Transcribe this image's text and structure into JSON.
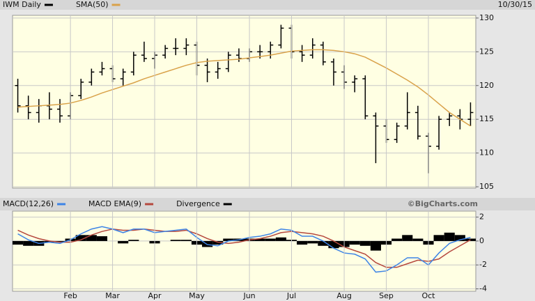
{
  "chart_data": [
    {
      "type": "ohlc",
      "date": "10/30/15",
      "ylim": [
        104.8,
        130.4
      ],
      "yticks": [
        105,
        110,
        115,
        120,
        125,
        130
      ],
      "grid": true,
      "series": [
        {
          "name": "IWM Daily",
          "color": "#000000",
          "open": [
            120,
            117,
            116,
            117,
            116.5,
            115.5,
            118.5,
            120.5,
            122,
            122.5,
            121,
            122,
            124.5,
            124,
            124.5,
            125.5,
            125.5,
            126,
            123,
            122,
            122.5,
            124.5,
            124,
            125,
            125,
            126,
            128.5,
            125,
            124.5,
            126,
            123.5,
            122,
            120.5,
            121,
            115.5,
            114,
            112,
            114,
            116,
            112.5,
            111,
            115,
            115.5,
            115
          ],
          "high": [
            121,
            118.5,
            118,
            119,
            118,
            119,
            121,
            122.5,
            123.5,
            123,
            122.5,
            125,
            126.5,
            125,
            126,
            127,
            127,
            126.5,
            124,
            123.5,
            125,
            125.5,
            125.5,
            126,
            126.5,
            129,
            129,
            126,
            127,
            126.5,
            124,
            123,
            121.5,
            121.5,
            116,
            115,
            114.5,
            119,
            117,
            113,
            115.5,
            116,
            116.5,
            117.5
          ],
          "low": [
            116,
            115,
            114.5,
            115,
            114.5,
            115,
            118,
            120,
            121.5,
            120.5,
            120,
            121.5,
            123.5,
            122.5,
            124,
            124.5,
            124.5,
            121.5,
            120.5,
            121,
            122,
            123.5,
            123.5,
            124,
            124,
            125.5,
            124,
            123.5,
            124,
            123,
            120,
            119.5,
            119,
            115,
            108.5,
            111.5,
            111.5,
            113.5,
            112,
            107,
            110.5,
            114,
            113.5,
            114
          ],
          "close": [
            117,
            116,
            117,
            116.5,
            115.5,
            118.5,
            120.5,
            122,
            122.5,
            121,
            122,
            124.5,
            124,
            124.5,
            125.5,
            125.5,
            126,
            123,
            122,
            122.5,
            124.5,
            124,
            125,
            125,
            126,
            128.5,
            125,
            124.5,
            126,
            123.5,
            122,
            120.5,
            121,
            115.5,
            114,
            112,
            114,
            116,
            112.5,
            111,
            115,
            115.5,
            115,
            116
          ]
        },
        {
          "name": "SMA(50)",
          "color": "#d9a24a",
          "values": [
            116.8,
            116.9,
            117,
            117.1,
            117.2,
            117.4,
            117.8,
            118.3,
            118.9,
            119.4,
            119.9,
            120.4,
            121,
            121.5,
            122,
            122.5,
            123,
            123.4,
            123.6,
            123.7,
            123.8,
            123.9,
            124.1,
            124.3,
            124.5,
            124.8,
            125.1,
            125.2,
            125.3,
            125.3,
            125.2,
            125,
            124.7,
            124.2,
            123.4,
            122.6,
            121.7,
            120.8,
            119.8,
            118.6,
            117.3,
            116,
            115,
            114
          ]
        }
      ]
    },
    {
      "type": "macd",
      "source": "©BigCharts.com",
      "ylim": [
        -4.2,
        2.5
      ],
      "yticks": [
        2,
        0,
        -2,
        -4
      ],
      "grid": true,
      "categories": [
        null,
        null,
        null,
        null,
        null,
        "Feb",
        null,
        null,
        null,
        "Mar",
        null,
        null,
        null,
        "Apr",
        null,
        null,
        null,
        "May",
        null,
        null,
        null,
        null,
        "Jun",
        null,
        null,
        null,
        "Jul",
        null,
        null,
        null,
        null,
        "Aug",
        null,
        null,
        null,
        "Sep",
        null,
        null,
        null,
        "Oct",
        null,
        null,
        null,
        null
      ],
      "series": [
        {
          "name": "MACD(12,26)",
          "color": "#3d84e6",
          "values": [
            0.6,
            0.1,
            -0.2,
            -0.1,
            -0.2,
            0.1,
            0.6,
            1.0,
            1.2,
            1.0,
            0.7,
            1.0,
            1.0,
            0.7,
            0.8,
            0.9,
            1.0,
            0.3,
            -0.3,
            -0.4,
            0,
            0.1,
            0.3,
            0.4,
            0.6,
            1.0,
            0.9,
            0.4,
            0.4,
            0,
            -0.6,
            -1.0,
            -1.1,
            -1.5,
            -2.6,
            -2.5,
            -2.0,
            -1.4,
            -1.4,
            -2.0,
            -1.0,
            -0.2,
            0.1,
            0.3
          ]
        },
        {
          "name": "MACD EMA(9)",
          "color": "#b5483e",
          "values": [
            0.9,
            0.5,
            0.2,
            0,
            -0.1,
            -0.1,
            0.1,
            0.5,
            0.8,
            1.0,
            0.9,
            0.9,
            1.0,
            0.9,
            0.8,
            0.8,
            0.9,
            0.6,
            0.2,
            -0.1,
            -0.2,
            -0.1,
            0.1,
            0.2,
            0.4,
            0.7,
            0.8,
            0.7,
            0.6,
            0.4,
            0,
            -0.5,
            -0.8,
            -1.1,
            -1.8,
            -2.2,
            -2.2,
            -1.9,
            -1.6,
            -1.7,
            -1.5,
            -0.9,
            -0.4,
            0.1
          ]
        },
        {
          "name": "Divergence",
          "color": "#000000",
          "values": [
            -0.3,
            -0.4,
            -0.4,
            -0.1,
            -0.1,
            0.2,
            0.5,
            0.5,
            0.4,
            0,
            -0.2,
            0.1,
            0,
            -0.2,
            0,
            0.1,
            0.1,
            -0.3,
            -0.5,
            -0.3,
            0.2,
            0.2,
            0.2,
            0.2,
            0.2,
            0.3,
            0.1,
            -0.3,
            -0.2,
            -0.4,
            -0.6,
            -0.5,
            -0.3,
            -0.4,
            -0.8,
            -0.3,
            0.2,
            0.5,
            0.2,
            -0.3,
            0.5,
            0.7,
            0.5,
            0.2
          ]
        }
      ]
    }
  ]
}
